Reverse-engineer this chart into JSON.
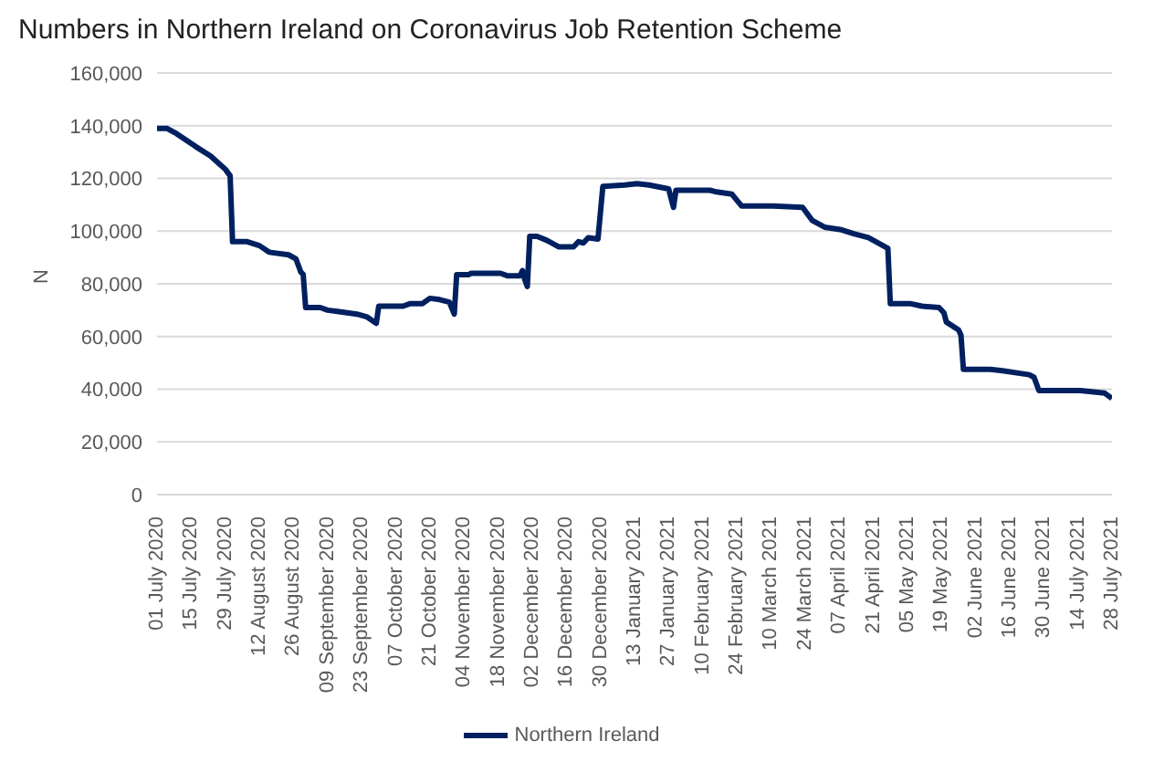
{
  "chart_data": {
    "type": "line",
    "title": "Numbers in Northern Ireland on Coronavirus Job Retention Scheme",
    "ylabel": "N",
    "xlim": [
      "2020-07-01",
      "2021-07-28"
    ],
    "xticks": [
      {
        "value": "2020-07-01",
        "label": "01 July 2020"
      },
      {
        "value": "2020-07-15",
        "label": "15 July 2020"
      },
      {
        "value": "2020-07-29",
        "label": "29 July 2020"
      },
      {
        "value": "2020-08-12",
        "label": "12 August 2020"
      },
      {
        "value": "2020-08-26",
        "label": "26 August 2020"
      },
      {
        "value": "2020-09-09",
        "label": "09 September 2020"
      },
      {
        "value": "2020-09-23",
        "label": "23 September 2020"
      },
      {
        "value": "2020-10-07",
        "label": "07 October 2020"
      },
      {
        "value": "2020-10-21",
        "label": "21 October 2020"
      },
      {
        "value": "2020-11-04",
        "label": "04 November 2020"
      },
      {
        "value": "2020-11-18",
        "label": "18 November 2020"
      },
      {
        "value": "2020-12-02",
        "label": "02 December 2020"
      },
      {
        "value": "2020-12-16",
        "label": "16 December 2020"
      },
      {
        "value": "2020-12-30",
        "label": "30 December 2020"
      },
      {
        "value": "2021-01-13",
        "label": "13 January 2021"
      },
      {
        "value": "2021-01-27",
        "label": "27 January 2021"
      },
      {
        "value": "2021-02-10",
        "label": "10 February 2021"
      },
      {
        "value": "2021-02-24",
        "label": "24 February 2021"
      },
      {
        "value": "2021-03-10",
        "label": "10 March 2021"
      },
      {
        "value": "2021-03-24",
        "label": "24 March 2021"
      },
      {
        "value": "2021-04-07",
        "label": "07 April 2021"
      },
      {
        "value": "2021-04-21",
        "label": "21 April 2021"
      },
      {
        "value": "2021-05-05",
        "label": "05 May 2021"
      },
      {
        "value": "2021-05-19",
        "label": "19 May 2021"
      },
      {
        "value": "2021-06-02",
        "label": "02 June 2021"
      },
      {
        "value": "2021-06-16",
        "label": "16 June 2021"
      },
      {
        "value": "2021-06-30",
        "label": "30 June 2021"
      },
      {
        "value": "2021-07-14",
        "label": "14 July 2021"
      },
      {
        "value": "2021-07-28",
        "label": "28 July 2021"
      }
    ],
    "ylim": [
      0,
      160000
    ],
    "yticks": [
      {
        "value": 0,
        "label": "0"
      },
      {
        "value": 20000,
        "label": "20,000"
      },
      {
        "value": 40000,
        "label": "40,000"
      },
      {
        "value": 60000,
        "label": "60,000"
      },
      {
        "value": 80000,
        "label": "80,000"
      },
      {
        "value": 100000,
        "label": "100,000"
      },
      {
        "value": 120000,
        "label": "120,000"
      },
      {
        "value": 140000,
        "label": "140,000"
      },
      {
        "value": 160000,
        "label": "160,000"
      }
    ],
    "grid": "y",
    "legend": "bottom",
    "marker": "none",
    "line_style": "solid",
    "series": [
      {
        "name": "Northern Ireland",
        "color": "#002060",
        "x": [
          "2020-07-01",
          "2020-07-05",
          "2020-07-09",
          "2020-07-17",
          "2020-07-23",
          "2020-07-26",
          "2020-07-29",
          "2020-07-31",
          "2020-08-01",
          "2020-08-07",
          "2020-08-12",
          "2020-08-16",
          "2020-08-24",
          "2020-08-27",
          "2020-08-29",
          "2020-08-30",
          "2020-08-31",
          "2020-09-06",
          "2020-09-09",
          "2020-09-13",
          "2020-09-21",
          "2020-09-25",
          "2020-09-29",
          "2020-09-30",
          "2020-10-10",
          "2020-10-13",
          "2020-10-18",
          "2020-10-21",
          "2020-10-25",
          "2020-10-29",
          "2020-10-31",
          "2020-11-01",
          "2020-11-06",
          "2020-11-07",
          "2020-11-19",
          "2020-11-22",
          "2020-11-27",
          "2020-11-28",
          "2020-11-29",
          "2020-11-30",
          "2020-12-01",
          "2020-12-04",
          "2020-12-08",
          "2020-12-13",
          "2020-12-19",
          "2020-12-21",
          "2020-12-23",
          "2020-12-25",
          "2020-12-29",
          "2020-12-31",
          "2021-01-09",
          "2021-01-14",
          "2021-01-19",
          "2021-01-27",
          "2021-01-29",
          "2021-01-30",
          "2021-02-13",
          "2021-02-15",
          "2021-02-22",
          "2021-02-26",
          "2021-03-11",
          "2021-03-23",
          "2021-03-27",
          "2021-04-01",
          "2021-04-08",
          "2021-04-13",
          "2021-04-19",
          "2021-04-27",
          "2021-04-28",
          "2021-05-06",
          "2021-05-11",
          "2021-05-18",
          "2021-05-20",
          "2021-05-21",
          "2021-05-26",
          "2021-05-27",
          "2021-05-28",
          "2021-06-08",
          "2021-06-13",
          "2021-06-24",
          "2021-06-26",
          "2021-06-28",
          "2021-07-15",
          "2021-07-25",
          "2021-07-28"
        ],
        "values": [
          139000,
          139000,
          137000,
          132000,
          128500,
          126000,
          123500,
          121000,
          96000,
          96000,
          94500,
          92000,
          91000,
          89500,
          84500,
          83500,
          71000,
          71000,
          70000,
          69500,
          68500,
          67500,
          65000,
          71500,
          71500,
          72500,
          72500,
          74500,
          74000,
          73000,
          68500,
          83500,
          83500,
          84000,
          84000,
          83000,
          83000,
          85000,
          81500,
          79000,
          98000,
          98000,
          96500,
          94000,
          94000,
          96000,
          95500,
          97500,
          97000,
          117000,
          117500,
          118000,
          117500,
          116000,
          109000,
          115500,
          115500,
          115000,
          114000,
          109500,
          109500,
          109000,
          104000,
          101500,
          100500,
          99000,
          97500,
          93500,
          72500,
          72500,
          71500,
          71000,
          69000,
          65500,
          62500,
          60500,
          47500,
          47500,
          47000,
          45500,
          44500,
          39500,
          39500,
          38500,
          36500
        ]
      }
    ]
  }
}
